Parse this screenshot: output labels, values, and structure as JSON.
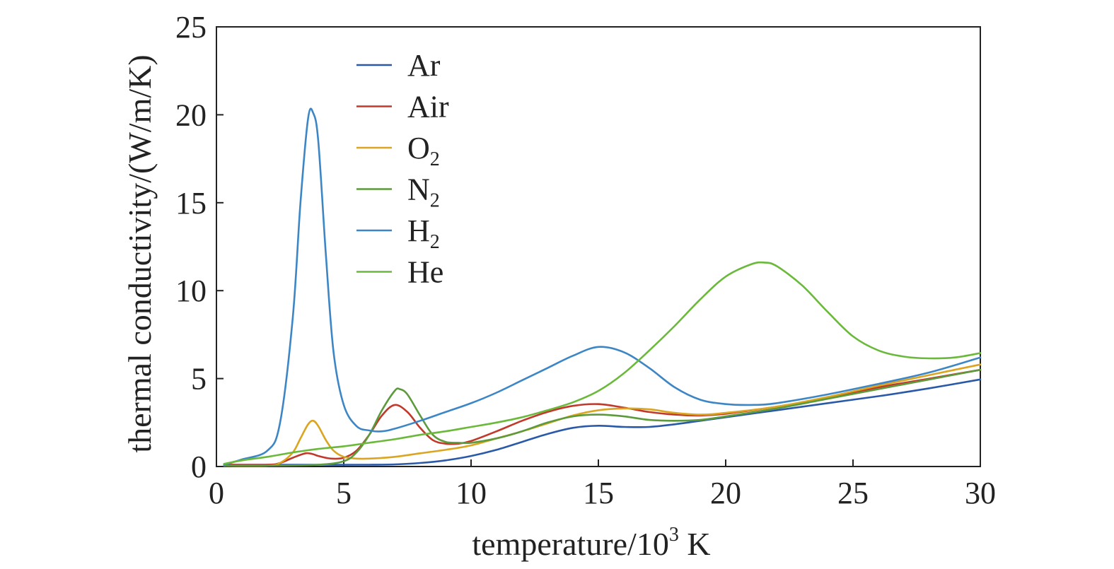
{
  "chart_data": {
    "type": "line",
    "xlabel": {
      "main": "temperature/10",
      "sup": "3",
      "tail": " K"
    },
    "ylabel": "thermal conductivity/(W/m/K)",
    "xlim": [
      0,
      30
    ],
    "ylim": [
      0,
      25
    ],
    "xticks": [
      0,
      5,
      10,
      15,
      20,
      25,
      30
    ],
    "yticks": [
      0,
      5,
      10,
      15,
      20,
      25
    ],
    "grid": false,
    "legend_position": "top-left",
    "series": [
      {
        "name": "Ar",
        "label_main": "Ar",
        "label_sub": "",
        "color": "#2a59a8",
        "x": [
          0.3,
          2,
          4,
          6,
          7,
          8,
          9,
          10,
          11,
          12,
          13,
          14,
          15,
          16,
          17,
          18,
          19,
          20,
          22,
          24,
          26,
          28,
          30
        ],
        "y": [
          0.1,
          0.1,
          0.1,
          0.1,
          0.12,
          0.2,
          0.35,
          0.6,
          0.95,
          1.4,
          1.85,
          2.2,
          2.32,
          2.25,
          2.25,
          2.4,
          2.6,
          2.8,
          3.2,
          3.6,
          4.0,
          4.45,
          4.95
        ]
      },
      {
        "name": "Air",
        "label_main": "Air",
        "label_sub": "",
        "color": "#c0392b",
        "x": [
          0.3,
          2,
          2.5,
          3,
          3.5,
          3.8,
          4,
          4.5,
          5,
          5.5,
          6,
          6.5,
          7,
          7.5,
          8,
          8.5,
          9,
          9.5,
          10,
          11,
          12,
          13,
          14,
          15,
          16,
          17,
          18,
          19,
          20,
          22,
          24,
          26,
          28,
          30
        ],
        "y": [
          0.1,
          0.1,
          0.2,
          0.5,
          0.75,
          0.7,
          0.6,
          0.45,
          0.5,
          0.9,
          1.8,
          2.9,
          3.5,
          3.1,
          2.2,
          1.5,
          1.3,
          1.3,
          1.45,
          2.0,
          2.6,
          3.1,
          3.45,
          3.55,
          3.35,
          3.1,
          2.95,
          2.9,
          3.0,
          3.4,
          3.9,
          4.5,
          5.0,
          5.5
        ]
      },
      {
        "name": "O2",
        "label_main": "O",
        "label_sub": "2",
        "color": "#daa520",
        "x": [
          0.3,
          2,
          2.5,
          3,
          3.3,
          3.6,
          3.8,
          4,
          4.3,
          4.6,
          5,
          5.5,
          6,
          7,
          8,
          9,
          10,
          11,
          12,
          13,
          14,
          15,
          16,
          17,
          18,
          19,
          20,
          22,
          24,
          26,
          28,
          30
        ],
        "y": [
          0.05,
          0.05,
          0.2,
          0.8,
          1.6,
          2.4,
          2.6,
          2.3,
          1.5,
          0.9,
          0.55,
          0.45,
          0.45,
          0.55,
          0.75,
          0.95,
          1.2,
          1.6,
          2.0,
          2.45,
          2.9,
          3.2,
          3.3,
          3.25,
          3.05,
          2.95,
          3.05,
          3.4,
          3.95,
          4.6,
          5.2,
          5.8
        ]
      },
      {
        "name": "N2",
        "label_main": "N",
        "label_sub": "2",
        "color": "#5c9a3c",
        "x": [
          0.3,
          2,
          4,
          5,
          5.5,
          6,
          6.5,
          7,
          7.2,
          7.5,
          8,
          8.5,
          9,
          9.5,
          10,
          11,
          12,
          13,
          14,
          15,
          16,
          17,
          18,
          19,
          20,
          22,
          24,
          26,
          28,
          30
        ],
        "y": [
          0.05,
          0.05,
          0.1,
          0.3,
          0.8,
          1.8,
          3.2,
          4.3,
          4.4,
          4.1,
          2.9,
          1.8,
          1.4,
          1.35,
          1.35,
          1.6,
          2.0,
          2.5,
          2.85,
          2.95,
          2.85,
          2.65,
          2.6,
          2.65,
          2.85,
          3.3,
          3.85,
          4.4,
          4.95,
          5.5
        ]
      },
      {
        "name": "H2",
        "label_main": "H",
        "label_sub": "2",
        "color": "#3d86c6",
        "x": [
          0.3,
          1,
          2,
          2.5,
          3,
          3.3,
          3.6,
          3.8,
          4,
          4.3,
          4.6,
          5,
          5.5,
          6,
          6.5,
          7,
          8,
          9,
          10,
          11,
          12,
          13,
          14,
          15,
          16,
          17,
          18,
          19,
          20,
          21,
          22,
          24,
          26,
          28,
          30
        ],
        "y": [
          0.1,
          0.4,
          0.9,
          2.5,
          8.5,
          15,
          19.8,
          20.1,
          18.5,
          12,
          6.5,
          3.5,
          2.3,
          2.05,
          2.0,
          2.15,
          2.6,
          3.1,
          3.6,
          4.2,
          4.9,
          5.6,
          6.3,
          6.8,
          6.5,
          5.6,
          4.5,
          3.8,
          3.55,
          3.5,
          3.6,
          4.1,
          4.7,
          5.35,
          6.2
        ]
      },
      {
        "name": "He",
        "label_main": "He",
        "label_sub": "",
        "color": "#6ab93a",
        "x": [
          0.3,
          1,
          2,
          3,
          4,
          5,
          6,
          7,
          8,
          9,
          10,
          11,
          12,
          13,
          14,
          15,
          16,
          17,
          18,
          19,
          20,
          21,
          21.5,
          22,
          23,
          24,
          25,
          26,
          27,
          28,
          29,
          30
        ],
        "y": [
          0.15,
          0.35,
          0.55,
          0.8,
          1.0,
          1.15,
          1.35,
          1.55,
          1.8,
          2.0,
          2.25,
          2.5,
          2.8,
          3.2,
          3.65,
          4.3,
          5.3,
          6.6,
          8.0,
          9.5,
          10.8,
          11.5,
          11.6,
          11.4,
          10.3,
          8.8,
          7.4,
          6.6,
          6.25,
          6.15,
          6.2,
          6.45
        ]
      }
    ]
  }
}
